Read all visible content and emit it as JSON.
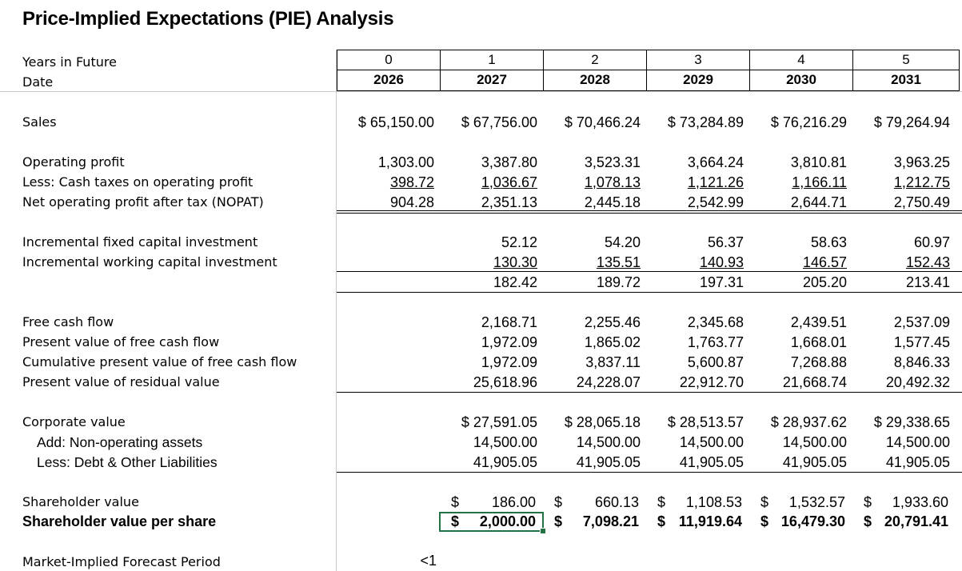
{
  "title": "Price-Implied Expectations (PIE) Analysis",
  "header": {
    "years_label": "Years in Future",
    "date_label": "Date",
    "years": [
      "0",
      "1",
      "2",
      "3",
      "4",
      "5"
    ],
    "dates": [
      "2026",
      "2027",
      "2028",
      "2029",
      "2030",
      "2031"
    ]
  },
  "rows": {
    "sales": {
      "label": "Sales",
      "values": [
        "65,150.00",
        "67,756.00",
        "70,466.24",
        "73,284.89",
        "76,216.29",
        "79,264.94"
      ]
    },
    "operating_profit": {
      "label": "Operating profit",
      "values": [
        "1,303.00",
        "3,387.80",
        "3,523.31",
        "3,664.24",
        "3,810.81",
        "3,963.25"
      ]
    },
    "cash_taxes": {
      "label": "Less: Cash taxes on operating profit",
      "values": [
        "398.72",
        "1,036.67",
        "1,078.13",
        "1,121.26",
        "1,166.11",
        "1,212.75"
      ]
    },
    "nopat": {
      "label": "Net operating profit after tax (NOPAT)",
      "values": [
        "904.28",
        "2,351.13",
        "2,445.18",
        "2,542.99",
        "2,644.71",
        "2,750.49"
      ]
    },
    "fixed_capital": {
      "label": "Incremental fixed capital investment",
      "values": [
        "",
        "52.12",
        "54.20",
        "56.37",
        "58.63",
        "60.97"
      ]
    },
    "working_capital": {
      "label": "Incremental working capital investment",
      "values": [
        "",
        "130.30",
        "135.51",
        "140.93",
        "146.57",
        "152.43"
      ]
    },
    "total_investment": {
      "values": [
        "",
        "182.42",
        "189.72",
        "197.31",
        "205.20",
        "213.41"
      ]
    },
    "fcf": {
      "label": "Free cash flow",
      "values": [
        "",
        "2,168.71",
        "2,255.46",
        "2,345.68",
        "2,439.51",
        "2,537.09"
      ]
    },
    "pv_fcf": {
      "label": "Present value of free cash flow",
      "values": [
        "",
        "1,972.09",
        "1,865.02",
        "1,763.77",
        "1,668.01",
        "1,577.45"
      ]
    },
    "cum_pv_fcf": {
      "label": "Cumulative present value of free cash flow",
      "values": [
        "",
        "1,972.09",
        "3,837.11",
        "5,600.87",
        "7,268.88",
        "8,846.33"
      ]
    },
    "pv_residual": {
      "label": "Present value of residual value",
      "values": [
        "",
        "25,618.96",
        "24,228.07",
        "22,912.70",
        "21,668.74",
        "20,492.32"
      ]
    },
    "corporate_value": {
      "label": "Corporate value",
      "values": [
        "",
        "27,591.05",
        "28,065.18",
        "28,513.57",
        "28,937.62",
        "29,338.65"
      ]
    },
    "non_operating": {
      "label": "Add: Non-operating assets",
      "values": [
        "",
        "14,500.00",
        "14,500.00",
        "14,500.00",
        "14,500.00",
        "14,500.00"
      ]
    },
    "debt": {
      "label": "Less: Debt & Other Liabilities",
      "values": [
        "",
        "41,905.05",
        "41,905.05",
        "41,905.05",
        "41,905.05",
        "41,905.05"
      ]
    },
    "shareholder_value": {
      "label": "Shareholder value",
      "values": [
        "",
        "186.00",
        "660.13",
        "1,108.53",
        "1,532.57",
        "1,933.60"
      ]
    },
    "value_per_share": {
      "label": "Shareholder value per share",
      "values": [
        "",
        "2,000.00",
        "7,098.21",
        "11,919.64",
        "16,479.30",
        "20,791.41"
      ]
    },
    "forecast_period": {
      "label": "Market-Implied Forecast Period",
      "value": "<1"
    }
  },
  "currency_symbol": "$"
}
